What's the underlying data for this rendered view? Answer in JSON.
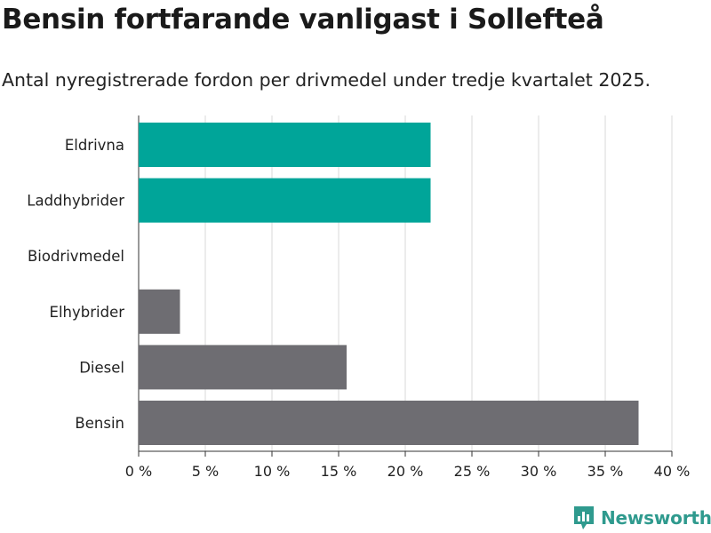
{
  "header": {
    "title": "Bensin fortfarande vanligast i Sollefteå",
    "subtitle": "Antal nyregistrerade fordon per drivmedel under tredje kvartalet 2025."
  },
  "brand": {
    "name": "Newsworthy",
    "icon": "bar-chart-logo-icon",
    "color": "#2f9a8e"
  },
  "colors": {
    "highlight": "#00a599",
    "default": "#6e6d72",
    "grid": "#d9d9d9",
    "axis": "#333333"
  },
  "chart_data": {
    "type": "bar",
    "orientation": "horizontal",
    "categories": [
      "Eldrivna",
      "Laddhybrider",
      "Biodrivmedel",
      "Elhybrider",
      "Diesel",
      "Bensin"
    ],
    "values": [
      21.9,
      21.9,
      0,
      3.1,
      15.6,
      37.5
    ],
    "highlighted": [
      true,
      true,
      false,
      false,
      false,
      false
    ],
    "xlim": [
      0,
      40
    ],
    "xticks": [
      0,
      5,
      10,
      15,
      20,
      25,
      30,
      35,
      40
    ],
    "xtick_labels": [
      "0 %",
      "5 %",
      "10 %",
      "15 %",
      "20 %",
      "25 %",
      "30 %",
      "35 %",
      "40 %"
    ],
    "grid": true,
    "legend": "none"
  }
}
